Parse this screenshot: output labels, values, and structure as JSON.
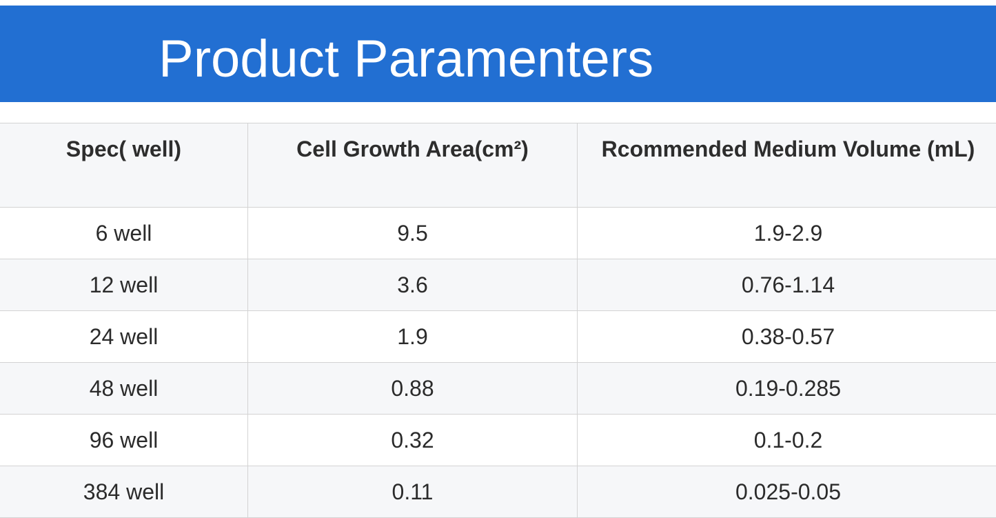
{
  "title": "Product Paramenters",
  "colors": {
    "banner": "#226fd2",
    "header_bg": "#f6f7f9",
    "stripe_bg": "#f6f7f9",
    "border": "#d3d3d3",
    "text": "#2b2b2b"
  },
  "table": {
    "headers": [
      "Spec( well)",
      "Cell Growth Area(cm²)",
      "Rcommended Medium Volume (mL)"
    ],
    "rows": [
      [
        "6 well",
        "9.5",
        "1.9-2.9"
      ],
      [
        "12 well",
        "3.6",
        "0.76-1.14"
      ],
      [
        "24 well",
        "1.9",
        "0.38-0.57"
      ],
      [
        "48 well",
        "0.88",
        "0.19-0.285"
      ],
      [
        "96 well",
        "0.32",
        "0.1-0.2"
      ],
      [
        "384 well",
        "0.11",
        "0.025-0.05"
      ]
    ]
  }
}
